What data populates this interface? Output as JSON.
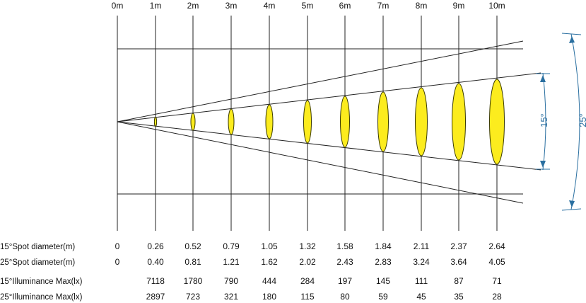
{
  "distances": [
    "0m",
    "1m",
    "2m",
    "3m",
    "4m",
    "5m",
    "6m",
    "7m",
    "8m",
    "9m",
    "10m"
  ],
  "angle_labels": {
    "narrow": "15°",
    "wide": "25°"
  },
  "colors": {
    "spot": "#fcec1e",
    "spot_stroke": "#3a3a00",
    "line": "#222222",
    "angle_arrow": "#2a6fa0"
  },
  "rows": [
    {
      "label": "15°Spot diameter(m)",
      "values": [
        "0",
        "0.26",
        "0.52",
        "0.79",
        "1.05",
        "1.32",
        "1.58",
        "1.84",
        "2.11",
        "2.37",
        "2.64"
      ]
    },
    {
      "label": "25°Spot diameter(m)",
      "values": [
        "0",
        "0.40",
        "0.81",
        "1.21",
        "1.62",
        "2.02",
        "2.43",
        "2.83",
        "3.24",
        "3.64",
        "4.05"
      ]
    },
    {
      "label": "15°Illuminance Max(lx)",
      "values": [
        "",
        "7118",
        "1780",
        "790",
        "444",
        "284",
        "197",
        "145",
        "111",
        "87",
        "71"
      ]
    },
    {
      "label": "25°Illuminance Max(lx)",
      "values": [
        "",
        "2897",
        "723",
        "321",
        "180",
        "115",
        "80",
        "59",
        "45",
        "35",
        "28"
      ]
    }
  ]
}
